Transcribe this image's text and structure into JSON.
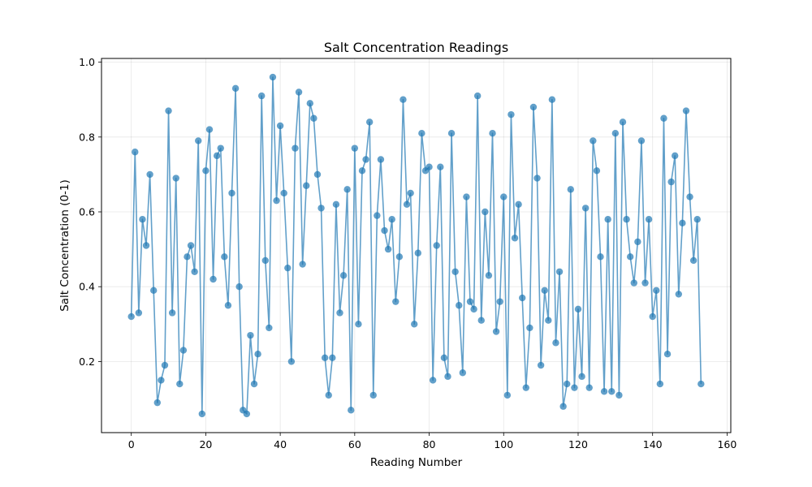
{
  "chart_data": {
    "type": "line",
    "title": "Salt Concentration Readings",
    "xlabel": "Reading Number",
    "ylabel": "Salt Concentration (0-1)",
    "xlim": [
      -8,
      161
    ],
    "ylim": [
      0.01,
      1.01
    ],
    "xticks": [
      0,
      20,
      40,
      60,
      80,
      100,
      120,
      140,
      160
    ],
    "yticks": [
      0.2,
      0.4,
      0.6,
      0.8,
      1.0
    ],
    "xtick_labels": [
      "0",
      "20",
      "40",
      "60",
      "80",
      "100",
      "120",
      "140",
      "160"
    ],
    "ytick_labels": [
      "0.2",
      "0.4",
      "0.6",
      "0.8",
      "1.0"
    ],
    "grid": true,
    "markers": true,
    "color": "#1f77b4",
    "series": [
      {
        "x": [
          0,
          1,
          2,
          3,
          4,
          5,
          6,
          7,
          8,
          9,
          10,
          11,
          12,
          13,
          14,
          15,
          16,
          17,
          18,
          19,
          20,
          21,
          22,
          23,
          24,
          25,
          26,
          27,
          28,
          29,
          30,
          31,
          32,
          33,
          34,
          35,
          36,
          37,
          38,
          39,
          40,
          41,
          42,
          43,
          44,
          45,
          46,
          47,
          48,
          49,
          50,
          51,
          52,
          53,
          54,
          55,
          56,
          57,
          58,
          59,
          60,
          61,
          62,
          63,
          64,
          65,
          66,
          67,
          68,
          69,
          70,
          71,
          72,
          73,
          74,
          75,
          76,
          77,
          78,
          79,
          80,
          81,
          82,
          83,
          84,
          85,
          86,
          87,
          88,
          89,
          90,
          91,
          92,
          93,
          94,
          95,
          96,
          97,
          98,
          99,
          100,
          101,
          102,
          103,
          104,
          105,
          106,
          107,
          108,
          109,
          110,
          111,
          112,
          113,
          114,
          115,
          116,
          117,
          118,
          119,
          120,
          121,
          122,
          123,
          124,
          125,
          126,
          127,
          128,
          129,
          130,
          131,
          132,
          133,
          134,
          135,
          136,
          137,
          138,
          139,
          140,
          141,
          142,
          143,
          144,
          145,
          146,
          147,
          148,
          149,
          150,
          151,
          152,
          153
        ],
        "y": [
          0.32,
          0.76,
          0.33,
          0.58,
          0.51,
          0.7,
          0.39,
          0.09,
          0.15,
          0.19,
          0.87,
          0.33,
          0.69,
          0.14,
          0.23,
          0.48,
          0.51,
          0.44,
          0.79,
          0.06,
          0.71,
          0.82,
          0.42,
          0.75,
          0.77,
          0.48,
          0.35,
          0.65,
          0.93,
          0.4,
          0.07,
          0.06,
          0.27,
          0.14,
          0.22,
          0.91,
          0.47,
          0.29,
          0.96,
          0.63,
          0.83,
          0.65,
          0.45,
          0.2,
          0.77,
          0.92,
          0.46,
          0.67,
          0.89,
          0.85,
          0.7,
          0.61,
          0.21,
          0.11,
          0.21,
          0.62,
          0.33,
          0.43,
          0.66,
          0.07,
          0.77,
          0.3,
          0.71,
          0.74,
          0.84,
          0.11,
          0.59,
          0.74,
          0.55,
          0.5,
          0.58,
          0.36,
          0.48,
          0.9,
          0.62,
          0.65,
          0.3,
          0.49,
          0.81,
          0.71,
          0.72,
          0.15,
          0.51,
          0.72,
          0.21,
          0.16,
          0.81,
          0.44,
          0.35,
          0.17,
          0.64,
          0.36,
          0.34,
          0.91,
          0.31,
          0.6,
          0.43,
          0.81,
          0.28,
          0.36,
          0.64,
          0.11,
          0.86,
          0.53,
          0.62,
          0.37,
          0.13,
          0.29,
          0.88,
          0.69,
          0.19,
          0.39,
          0.31,
          0.9,
          0.25,
          0.44,
          0.08,
          0.14,
          0.66,
          0.13,
          0.34,
          0.16,
          0.61,
          0.13,
          0.79,
          0.71,
          0.48,
          0.12,
          0.58,
          0.12,
          0.81,
          0.11,
          0.84,
          0.58,
          0.48,
          0.41,
          0.52,
          0.79,
          0.41,
          0.58,
          0.32,
          0.39,
          0.14,
          0.85,
          0.22,
          0.68,
          0.75,
          0.38,
          0.57,
          0.87,
          0.64,
          0.47,
          0.58,
          0.14
        ]
      }
    ]
  }
}
